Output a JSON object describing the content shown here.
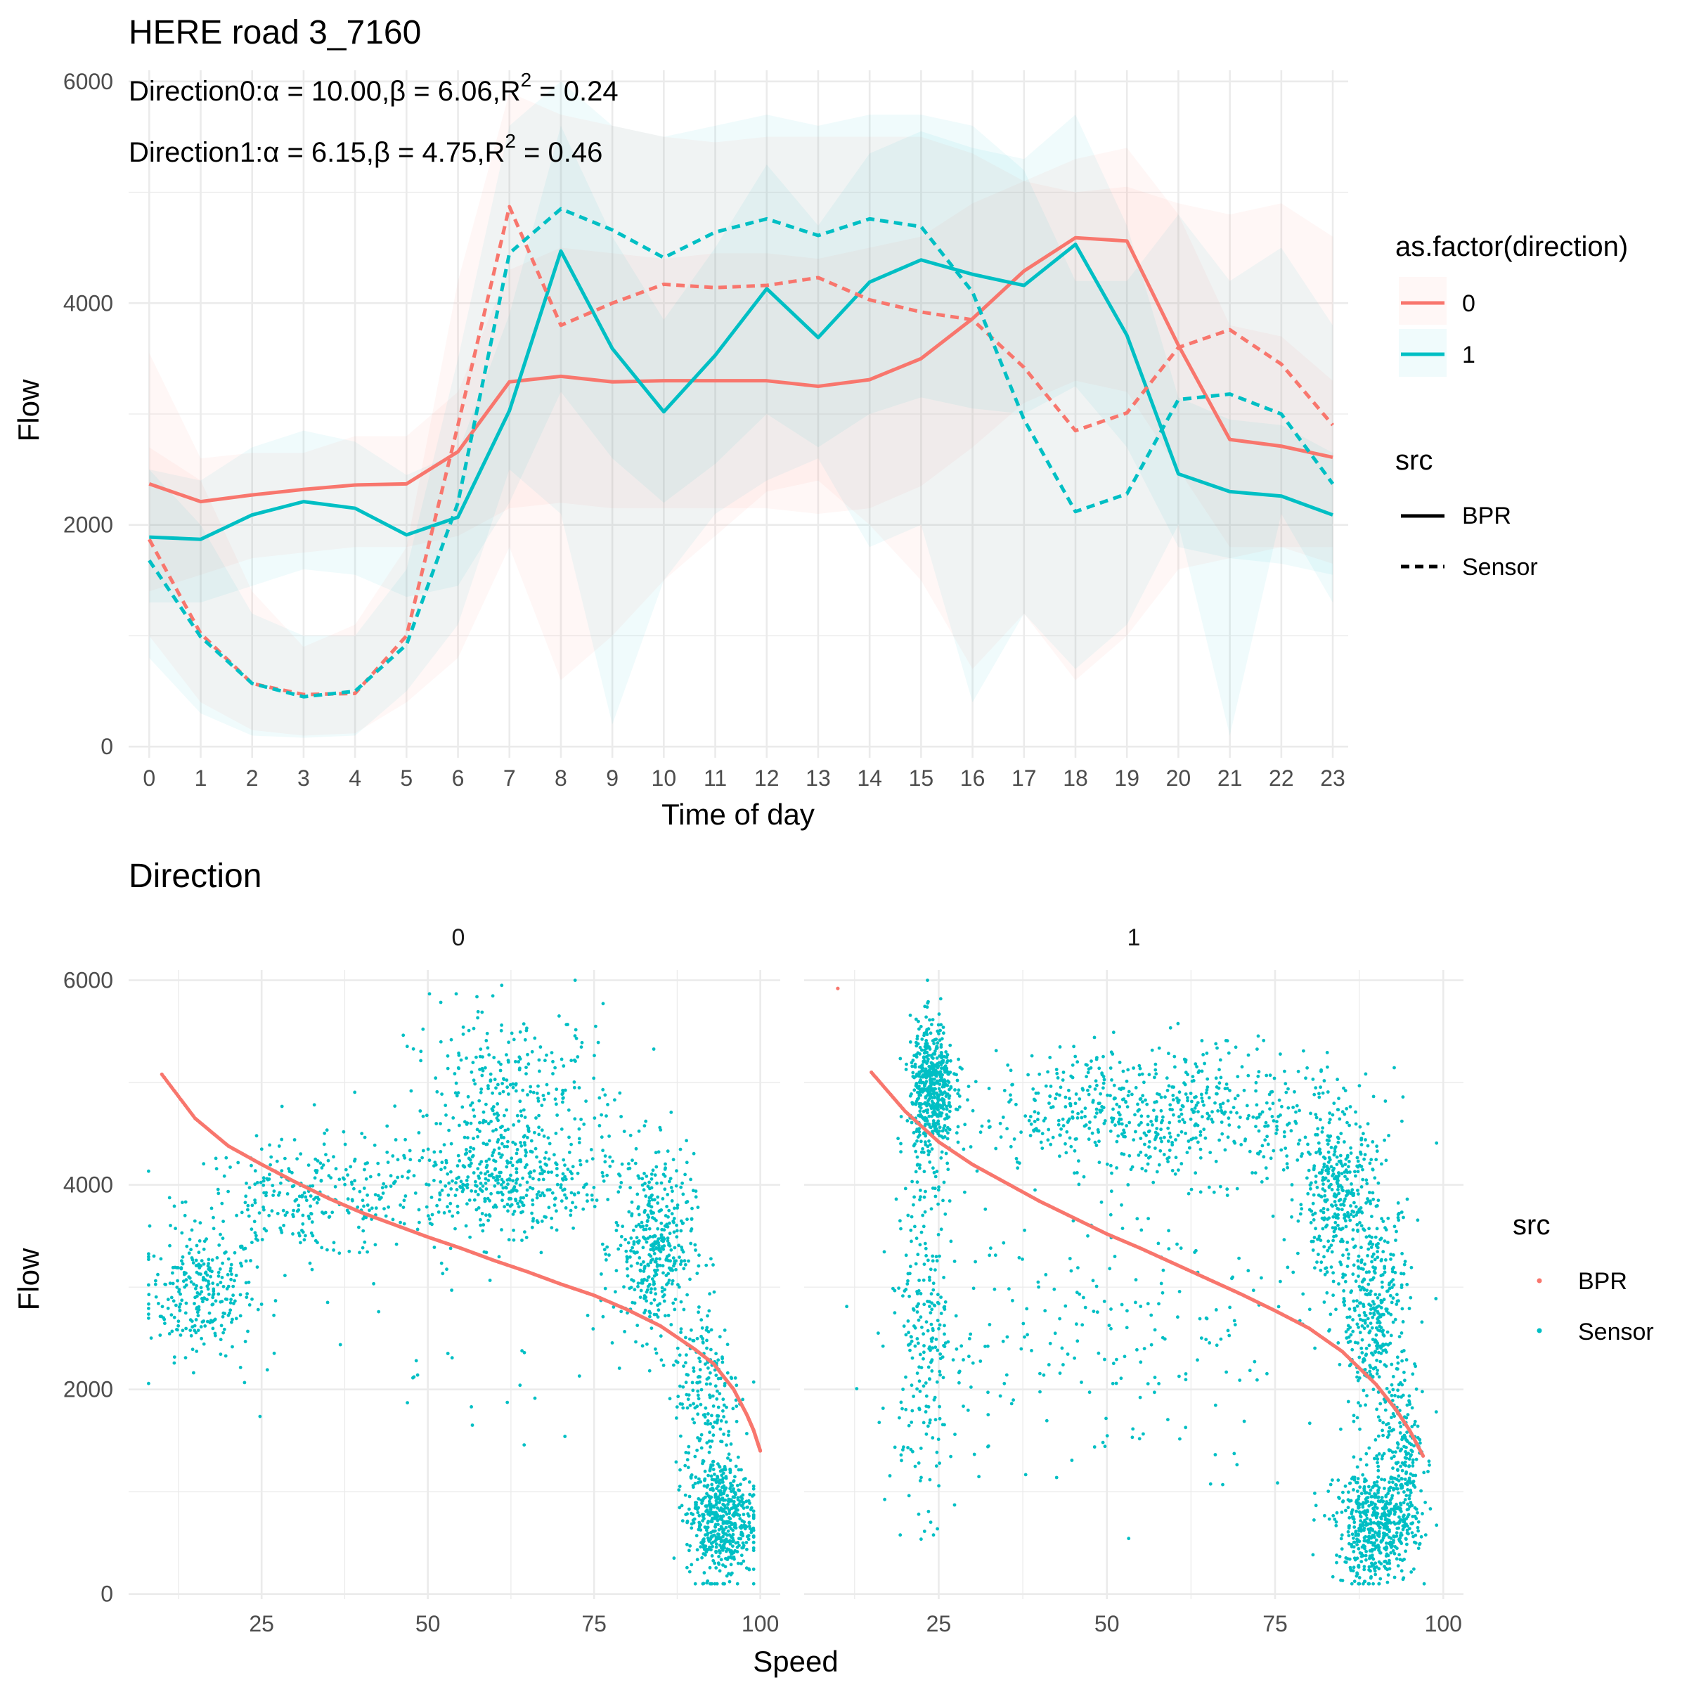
{
  "colors": {
    "dir0": "#F8766D",
    "dir1": "#00BFC4",
    "grid": "#EBEBEB"
  },
  "chart_data": [
    {
      "type": "line",
      "title": "HERE road 3_7160",
      "annotations": [
        {
          "prefix": "Direction0:",
          "alpha": "α = 10.00",
          "beta": "β = 6.06",
          "r2label": "R",
          "r2sup": "2",
          "r2val": " = 0.24"
        },
        {
          "prefix": "Direction1:",
          "alpha": "α = 6.15",
          "beta": "β = 4.75",
          "r2label": "R",
          "r2sup": "2",
          "r2val": " = 0.46"
        }
      ],
      "xlabel": "Time of day",
      "ylabel": "Flow",
      "xlim": [
        -0.4,
        23.3
      ],
      "ylim": [
        -100,
        6100
      ],
      "x_ticks": [
        0,
        1,
        2,
        3,
        4,
        5,
        6,
        7,
        8,
        9,
        10,
        11,
        12,
        13,
        14,
        15,
        16,
        17,
        18,
        19,
        20,
        21,
        22,
        23
      ],
      "y_ticks": [
        0,
        2000,
        4000,
        6000
      ],
      "legend": {
        "color_title": "as.factor(direction)",
        "color_items": [
          "0",
          "1"
        ],
        "linetype_title": "src",
        "linetype_items": [
          "BPR",
          "Sensor"
        ],
        "position": "right"
      },
      "series": [
        {
          "name": "0",
          "src": "BPR",
          "direction": 0,
          "values": [
            2370,
            2210,
            2270,
            2320,
            2360,
            2370,
            2660,
            3290,
            3340,
            3290,
            3300,
            3300,
            3300,
            3250,
            3310,
            3500,
            3860,
            4290,
            4590,
            4560,
            3620,
            2770,
            2710,
            2610
          ],
          "band_low": [
            1400,
            1550,
            1700,
            1750,
            1800,
            1800,
            1900,
            2150,
            2200,
            2150,
            2150,
            2150,
            2150,
            2100,
            2150,
            2350,
            2700,
            3100,
            3300,
            3200,
            2500,
            1800,
            1800,
            1650
          ],
          "band_high": [
            3550,
            2600,
            2650,
            2650,
            2800,
            2800,
            3200,
            4300,
            4500,
            4450,
            4400,
            4450,
            4450,
            4400,
            4500,
            4600,
            4900,
            5100,
            5300,
            5400,
            4800,
            3800,
            3700,
            3300
          ]
        },
        {
          "name": "1",
          "src": "BPR",
          "direction": 1,
          "values": [
            1890,
            1870,
            2090,
            2210,
            2150,
            1910,
            2070,
            3030,
            4470,
            3590,
            3020,
            3530,
            4130,
            3690,
            4190,
            4390,
            4260,
            4160,
            4530,
            3710,
            2460,
            2300,
            2260,
            2090
          ],
          "band_low": [
            1300,
            1300,
            1450,
            1600,
            1550,
            1350,
            1450,
            2200,
            3200,
            2600,
            2200,
            2550,
            3000,
            2700,
            3000,
            3150,
            3050,
            3000,
            3250,
            2700,
            1800,
            1700,
            1650,
            1550
          ],
          "band_high": [
            2500,
            2400,
            2700,
            2850,
            2750,
            2450,
            2650,
            3900,
            5600,
            4600,
            3850,
            4500,
            5250,
            4700,
            5350,
            5550,
            5400,
            5300,
            5700,
            4700,
            3150,
            2950,
            2900,
            2650
          ]
        },
        {
          "name": "0",
          "src": "Sensor",
          "direction": 0,
          "values": [
            1870,
            1020,
            570,
            470,
            480,
            1000,
            2900,
            4870,
            3800,
            4000,
            4170,
            4140,
            4160,
            4230,
            4030,
            3920,
            3850,
            3420,
            2850,
            3010,
            3600,
            3760,
            3450,
            2900
          ],
          "band_low": [
            1000,
            400,
            150,
            100,
            120,
            400,
            800,
            1800,
            600,
            1000,
            1500,
            1900,
            2300,
            2400,
            2000,
            1500,
            700,
            1200,
            600,
            1000,
            1600,
            1700,
            1800,
            1800
          ],
          "band_high": [
            2700,
            2400,
            1400,
            900,
            1100,
            1800,
            4200,
            5900,
            5700,
            5600,
            5500,
            5450,
            5500,
            5500,
            5500,
            5500,
            5350,
            5100,
            5000,
            5050,
            4900,
            4800,
            4900,
            4600
          ]
        },
        {
          "name": "1",
          "src": "Sensor",
          "direction": 1,
          "values": [
            1680,
            990,
            570,
            450,
            500,
            920,
            2200,
            4450,
            4850,
            4660,
            4410,
            4640,
            4760,
            4610,
            4760,
            4690,
            4100,
            2950,
            2120,
            2280,
            3130,
            3180,
            3000,
            2370
          ],
          "band_low": [
            800,
            300,
            100,
            80,
            100,
            500,
            1100,
            2500,
            2100,
            200,
            1500,
            2100,
            2400,
            2600,
            1800,
            2000,
            400,
            1200,
            700,
            1100,
            2000,
            100,
            2100,
            1300
          ],
          "band_high": [
            2500,
            2000,
            1200,
            1000,
            1000,
            1600,
            3500,
            5600,
            6000,
            5600,
            5500,
            5600,
            5700,
            5600,
            5700,
            5700,
            5600,
            5200,
            4200,
            4200,
            4800,
            4200,
            4500,
            3800
          ]
        }
      ]
    },
    {
      "type": "scatter",
      "title": "Direction",
      "xlabel": "Speed",
      "ylabel": "Flow",
      "facets": [
        "0",
        "1"
      ],
      "xlim": [
        5,
        103
      ],
      "ylim": [
        -50,
        6100
      ],
      "x_ticks": [
        25,
        50,
        75,
        100
      ],
      "y_ticks": [
        0,
        2000,
        4000,
        6000
      ],
      "legend": {
        "title": "src",
        "items": [
          "BPR",
          "Sensor"
        ],
        "position": "right"
      },
      "bpr_curves": [
        {
          "direction": 0,
          "x": [
            10,
            15,
            20,
            25,
            30,
            35,
            40,
            45,
            50,
            55,
            60,
            65,
            70,
            75,
            80,
            85,
            90,
            93,
            96,
            98,
            99,
            100
          ],
          "y": [
            5080,
            4650,
            4380,
            4200,
            4030,
            3870,
            3730,
            3610,
            3490,
            3380,
            3260,
            3150,
            3030,
            2920,
            2780,
            2620,
            2400,
            2250,
            2000,
            1750,
            1600,
            1400
          ]
        },
        {
          "direction": 1,
          "x": [
            15,
            20,
            25,
            30,
            35,
            40,
            45,
            50,
            55,
            60,
            65,
            70,
            75,
            80,
            85,
            90,
            93,
            95,
            97
          ],
          "y": [
            5100,
            4720,
            4420,
            4200,
            4020,
            3840,
            3680,
            3520,
            3380,
            3230,
            3080,
            2930,
            2770,
            2600,
            2370,
            2050,
            1800,
            1600,
            1350
          ]
        }
      ],
      "bpr_outlier": {
        "direction": 1,
        "x": 10,
        "y": 5920
      },
      "sensor_clusters": [
        {
          "direction": 0,
          "n": 260,
          "x_mean": 16,
          "x_sd": 4,
          "y_mean": 2950,
          "y_sd": 300
        },
        {
          "direction": 0,
          "n": 280,
          "x_mean": 32,
          "x_sd": 9,
          "y_mean": 3850,
          "y_sd": 280
        },
        {
          "direction": 0,
          "n": 320,
          "x_mean": 60,
          "x_sd": 8,
          "y_mean": 4000,
          "y_sd": 230
        },
        {
          "direction": 0,
          "n": 380,
          "x_mean": 63,
          "x_sd": 8,
          "y_mean": 4700,
          "y_sd": 520
        },
        {
          "direction": 0,
          "n": 400,
          "x_mean": 84,
          "x_sd": 3,
          "y_mean": 3400,
          "y_sd": 450
        },
        {
          "direction": 0,
          "n": 180,
          "x_mean": 92,
          "x_sd": 2.5,
          "y_mean": 2000,
          "y_sd": 450
        },
        {
          "direction": 0,
          "n": 550,
          "x_mean": 94,
          "x_sd": 2.5,
          "y_mean": 750,
          "y_sd": 300
        },
        {
          "direction": 0,
          "n": 40,
          "x_mean": 55,
          "x_sd": 22,
          "y_mean": 2300,
          "y_sd": 500
        },
        {
          "direction": 1,
          "n": 520,
          "x_mean": 24,
          "x_sd": 1.6,
          "y_mean": 4950,
          "y_sd": 320
        },
        {
          "direction": 1,
          "n": 260,
          "x_mean": 23,
          "x_sd": 2.5,
          "y_mean": 2700,
          "y_sd": 900
        },
        {
          "direction": 1,
          "n": 650,
          "x_mean": 58,
          "x_sd": 14,
          "y_mean": 4700,
          "y_sd": 320
        },
        {
          "direction": 1,
          "n": 220,
          "x_mean": 50,
          "x_sd": 16,
          "y_mean": 2600,
          "y_sd": 700
        },
        {
          "direction": 1,
          "n": 350,
          "x_mean": 84,
          "x_sd": 3,
          "y_mean": 3900,
          "y_sd": 400
        },
        {
          "direction": 1,
          "n": 380,
          "x_mean": 90,
          "x_sd": 2.5,
          "y_mean": 2700,
          "y_sd": 550
        },
        {
          "direction": 1,
          "n": 520,
          "x_mean": 90,
          "x_sd": 3,
          "y_mean": 650,
          "y_sd": 280
        },
        {
          "direction": 1,
          "n": 200,
          "x_mean": 94,
          "x_sd": 1.5,
          "y_mean": 1300,
          "y_sd": 400
        }
      ]
    }
  ]
}
